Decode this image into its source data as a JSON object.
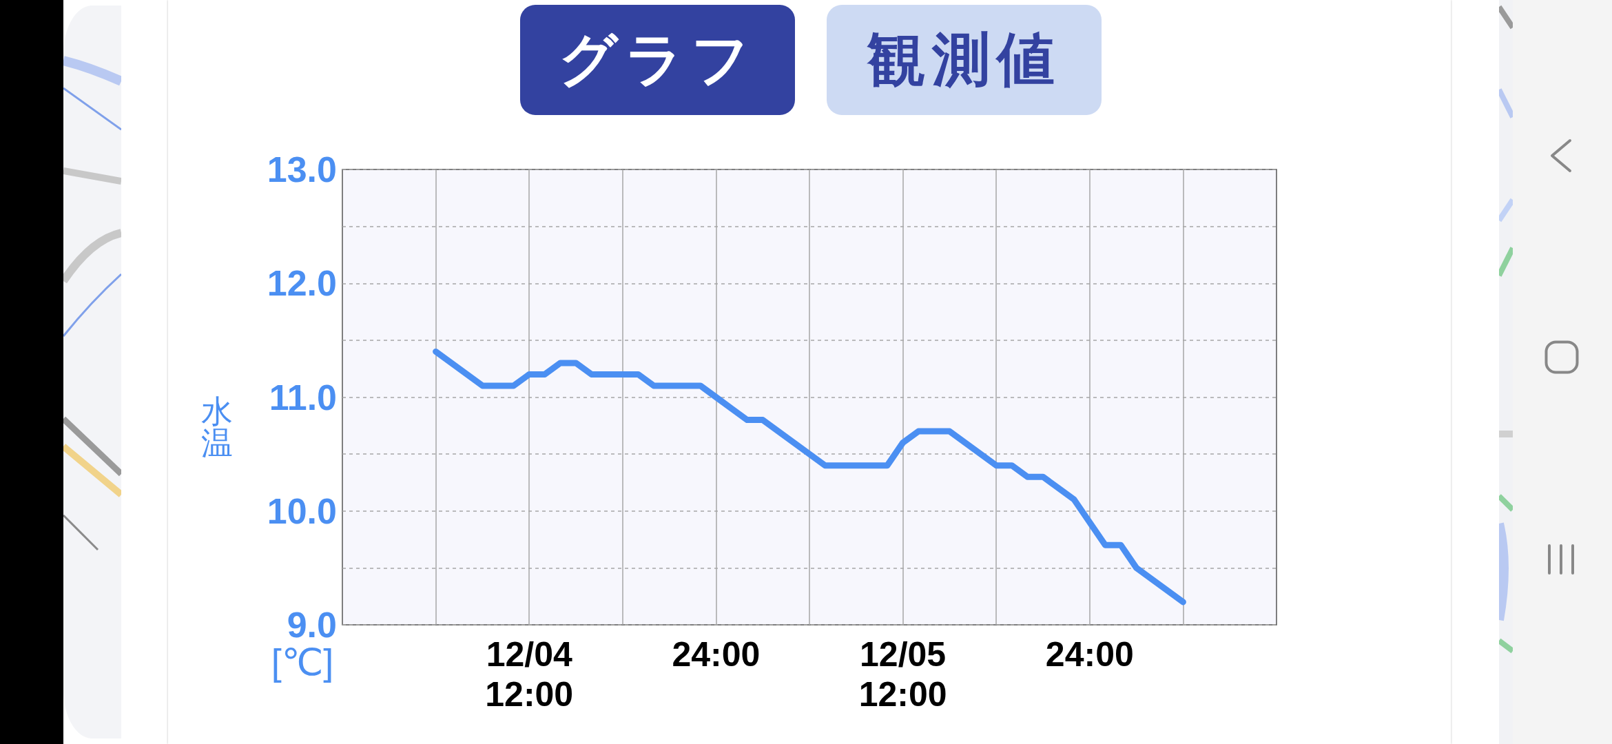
{
  "chart_data": {
    "type": "line",
    "x": [
      "--12-04T06:00",
      "--12-04T07:00",
      "--12-04T08:00",
      "--12-04T09:00",
      "--12-04T10:00",
      "--12-04T11:00",
      "--12-04T12:00",
      "--12-04T13:00",
      "--12-04T14:00",
      "--12-04T15:00",
      "--12-04T16:00",
      "--12-04T17:00",
      "--12-04T18:00",
      "--12-04T19:00",
      "--12-04T20:00",
      "--12-04T21:00",
      "--12-04T22:00",
      "--12-04T23:00",
      "--12-05T00:00",
      "--12-05T01:00",
      "--12-05T02:00",
      "--12-05T03:00",
      "--12-05T04:00",
      "--12-05T05:00",
      "--12-05T06:00",
      "--12-05T07:00",
      "--12-05T08:00",
      "--12-05T09:00",
      "--12-05T10:00",
      "--12-05T11:00",
      "--12-05T12:00",
      "--12-05T13:00",
      "--12-05T14:00",
      "--12-05T15:00",
      "--12-05T16:00",
      "--12-05T17:00",
      "--12-05T18:00",
      "--12-05T19:00",
      "--12-05T20:00",
      "--12-05T21:00",
      "--12-05T22:00",
      "--12-05T23:00",
      "--12-06T00:00",
      "--12-06T01:00",
      "--12-06T02:00",
      "--12-06T03:00",
      "--12-06T04:00",
      "--12-06T05:00",
      "--12-06T06:00"
    ],
    "values": [
      11.4,
      11.3,
      11.2,
      11.1,
      11.1,
      11.1,
      11.2,
      11.2,
      11.3,
      11.3,
      11.2,
      11.2,
      11.2,
      11.2,
      11.1,
      11.1,
      11.1,
      11.1,
      11.0,
      10.9,
      10.8,
      10.8,
      10.7,
      10.6,
      10.5,
      10.4,
      10.4,
      10.4,
      10.4,
      10.4,
      10.6,
      10.7,
      10.7,
      10.7,
      10.6,
      10.5,
      10.4,
      10.4,
      10.3,
      10.3,
      10.2,
      10.1,
      9.9,
      9.7,
      9.7,
      9.5,
      9.4,
      9.3,
      9.2
    ],
    "color": "#4b8ff2",
    "xlim": [
      "--12-04T00:00",
      "--12-06T12:00"
    ],
    "xticks": [
      {
        "value": "--12-04T06:00",
        "label": null
      },
      {
        "value": "--12-04T12:00",
        "label": "12/04\n12:00"
      },
      {
        "value": "--12-04T18:00",
        "label": null
      },
      {
        "value": "--12-05T00:00",
        "label": "24:00"
      },
      {
        "value": "--12-05T06:00",
        "label": null
      },
      {
        "value": "--12-05T12:00",
        "label": "12/05\n12:00"
      },
      {
        "value": "--12-05T18:00",
        "label": null
      },
      {
        "value": "--12-06T00:00",
        "label": "24:00"
      },
      {
        "value": "--12-06T06:00",
        "label": null
      }
    ],
    "ylim": [
      9,
      13
    ],
    "yticks": [
      {
        "value": 9,
        "label": "9.0"
      },
      {
        "value": 9.5,
        "label": null
      },
      {
        "value": 10,
        "label": "10.0"
      },
      {
        "value": 10.5,
        "label": null
      },
      {
        "value": 11,
        "label": "11.0"
      },
      {
        "value": 11.5,
        "label": null
      },
      {
        "value": 12,
        "label": "12.0"
      },
      {
        "value": 12.5,
        "label": null
      },
      {
        "value": 13,
        "label": "13.0"
      }
    ],
    "ylabel": "水温",
    "annotations": [
      "グラフ",
      "観測値",
      "[℃]"
    ],
    "grid": true,
    "marker": "none",
    "line_style": "solid"
  }
}
